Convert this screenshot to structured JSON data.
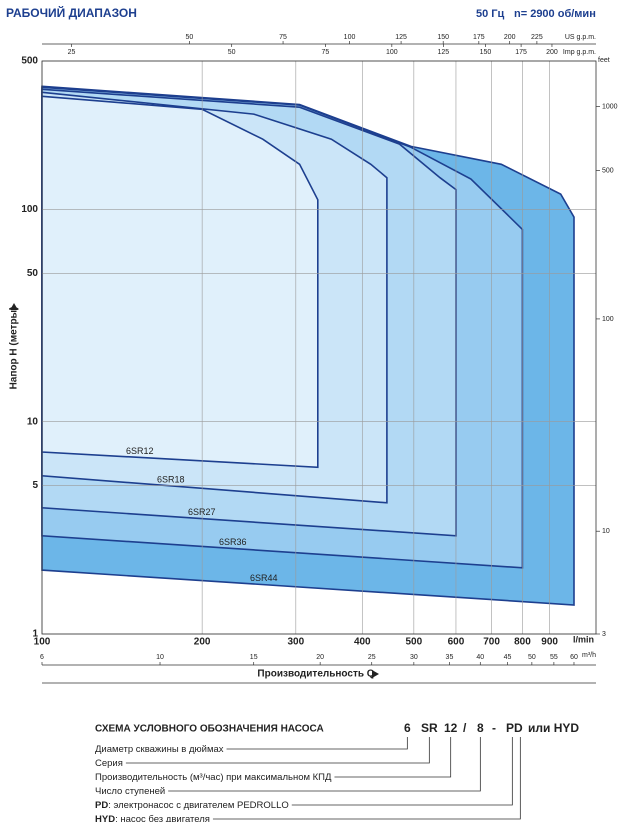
{
  "chart_data": {
    "type": "area-envelope",
    "title": "РАБОЧИЙ ДИАПАЗОН",
    "frequency": "50 Гц",
    "speed": "n= 2900 об/мин",
    "y_label": "Напор H (метры)",
    "x_label": "Производительность Q",
    "x_unit": "l/min",
    "x_log": true,
    "y_log": true,
    "grid": true,
    "xlim": [
      100,
      1100
    ],
    "xticks": [
      100,
      200,
      300,
      400,
      500,
      600,
      700,
      800,
      900
    ],
    "ylim": [
      1,
      500
    ],
    "yticks": [
      500,
      100,
      50,
      10,
      5,
      1
    ],
    "outline_color": "#1d3f8f",
    "secondary_axes": [
      {
        "unit": "US g.p.m.",
        "side": "top",
        "lim": [
          26.42,
          290.6
        ],
        "ticks": [
          50,
          75,
          100,
          125,
          150,
          175,
          200,
          225
        ]
      },
      {
        "unit": "Imp g.p.m.",
        "side": "top",
        "lim": [
          22.0,
          242.0
        ],
        "ticks": [
          25,
          50,
          75,
          100,
          125,
          150,
          175,
          200
        ]
      },
      {
        "unit": "m³/h",
        "side": "bottom",
        "lim": [
          6,
          66
        ],
        "ticks": [
          6,
          10,
          15,
          20,
          25,
          30,
          35,
          40,
          45,
          50,
          55,
          60
        ]
      },
      {
        "unit": "feet",
        "side": "right",
        "lim": [
          3.28,
          1640
        ],
        "ticks": [
          1000,
          500,
          100,
          10,
          {
            "value": 3.28,
            "label": "3"
          }
        ]
      }
    ],
    "series": [
      {
        "name": "6SR12",
        "color": "#e0f0fb",
        "q": [
          100,
          200,
          260,
          305,
          330,
          330,
          100
        ],
        "h": [
          341,
          296,
          214,
          163,
          111,
          6.1,
          7.2
        ]
      },
      {
        "name": "6SR18",
        "color": "#cbe5f8",
        "q": [
          100,
          250,
          350,
          415,
          445,
          445,
          100
        ],
        "h": [
          356,
          281,
          214,
          163,
          141,
          4.15,
          5.56
        ]
      },
      {
        "name": "6SR27",
        "color": "#b2d9f4",
        "q": [
          100,
          305,
          470,
          560,
          600,
          600,
          100
        ],
        "h": [
          368,
          303,
          203,
          141,
          124,
          2.9,
          3.93
        ]
      },
      {
        "name": "6SR36",
        "color": "#97cbf0",
        "q": [
          100,
          305,
          494,
          640,
          800,
          800,
          100
        ],
        "h": [
          376,
          310,
          196,
          139,
          80.5,
          2.05,
          2.9
        ]
      },
      {
        "name": "6SR44",
        "color": "#6cb6e8",
        "q": [
          100,
          305,
          494,
          730,
          944,
          1000,
          1000,
          100
        ],
        "h": [
          380,
          312,
          198,
          163,
          118,
          92,
          1.37,
          2.0
        ]
      }
    ]
  },
  "scheme": {
    "title": "СХЕМА УСЛОВНОГО ОБОЗНАЧЕНИЯ НАСОСА",
    "code": [
      "6",
      "SR",
      "12",
      "/",
      "8",
      "-",
      "PD",
      "или HYD"
    ],
    "rows": [
      {
        "text": "Диаметр скважины в дюймах"
      },
      {
        "text": "Серия"
      },
      {
        "text": "Производительность (м³/час) при максимальном КПД"
      },
      {
        "text": "Число ступеней"
      },
      {
        "key": "PD",
        "text": ": электронасос с двигателем PEDROLLO"
      },
      {
        "key": "HYD",
        "text": ": насос без двигателя"
      }
    ]
  }
}
